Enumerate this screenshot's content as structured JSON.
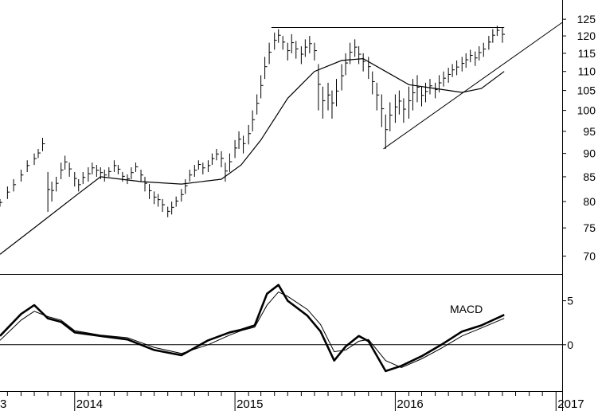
{
  "chart_data": [
    {
      "type": "ohlc-bar",
      "title": "",
      "ylabel": "",
      "scale": "log",
      "ylim": [
        67,
        127
      ],
      "y_ticks": [
        "70",
        "75",
        "80",
        "85",
        "90",
        "95",
        "100",
        "105",
        "110",
        "115",
        "120",
        "125"
      ],
      "x_ticks": [
        "3",
        "2014",
        "2015",
        "2016",
        "2017"
      ],
      "x_range": [
        "2013-07-15",
        "2017-01-15"
      ],
      "bars": [
        [
          "2013-07-15",
          79.0,
          80.5
        ],
        [
          "2013-08-01",
          80.5,
          83.0
        ],
        [
          "2013-08-15",
          82.0,
          84.5
        ],
        [
          "2013-09-01",
          84.0,
          86.5
        ],
        [
          "2013-09-15",
          86.0,
          88.5
        ],
        [
          "2013-10-01",
          87.5,
          90.0
        ],
        [
          "2013-10-10",
          89.0,
          91.0
        ],
        [
          "2013-10-20",
          90.5,
          93.5
        ],
        [
          "2013-11-01",
          78.0,
          86.0
        ],
        [
          "2013-11-10",
          80.0,
          84.0
        ],
        [
          "2013-11-20",
          82.0,
          85.0
        ],
        [
          "2013-12-01",
          84.5,
          88.0
        ],
        [
          "2013-12-10",
          86.5,
          89.5
        ],
        [
          "2013-12-20",
          85.0,
          88.0
        ],
        [
          "2014-01-01",
          83.0,
          86.0
        ],
        [
          "2014-01-10",
          82.0,
          84.5
        ],
        [
          "2014-01-20",
          83.5,
          86.0
        ],
        [
          "2014-02-01",
          84.0,
          87.0
        ],
        [
          "2014-02-10",
          85.5,
          88.0
        ],
        [
          "2014-02-20",
          85.0,
          87.5
        ],
        [
          "2014-03-01",
          84.5,
          87.0
        ],
        [
          "2014-03-10",
          84.0,
          86.5
        ],
        [
          "2014-03-20",
          85.0,
          87.0
        ],
        [
          "2014-04-01",
          86.0,
          88.5
        ],
        [
          "2014-04-10",
          85.5,
          87.5
        ],
        [
          "2014-04-20",
          84.0,
          86.0
        ],
        [
          "2014-05-01",
          83.5,
          85.5
        ],
        [
          "2014-05-10",
          84.5,
          87.0
        ],
        [
          "2014-05-20",
          86.0,
          88.0
        ],
        [
          "2014-06-01",
          84.0,
          86.5
        ],
        [
          "2014-06-10",
          82.0,
          85.0
        ],
        [
          "2014-06-20",
          80.5,
          83.5
        ],
        [
          "2014-07-01",
          79.5,
          82.0
        ],
        [
          "2014-07-10",
          79.0,
          81.5
        ],
        [
          "2014-07-20",
          78.0,
          80.5
        ],
        [
          "2014-08-01",
          77.0,
          79.0
        ],
        [
          "2014-08-10",
          77.5,
          80.0
        ],
        [
          "2014-08-20",
          79.0,
          81.0
        ],
        [
          "2014-09-01",
          80.0,
          82.5
        ],
        [
          "2014-09-10",
          81.5,
          84.5
        ],
        [
          "2014-09-20",
          84.0,
          86.5
        ],
        [
          "2014-10-01",
          85.0,
          87.5
        ],
        [
          "2014-10-10",
          86.5,
          88.5
        ],
        [
          "2014-10-20",
          85.5,
          88.0
        ],
        [
          "2014-11-01",
          86.0,
          88.5
        ],
        [
          "2014-11-10",
          87.5,
          90.0
        ],
        [
          "2014-11-20",
          88.5,
          91.0
        ],
        [
          "2014-12-01",
          87.0,
          90.5
        ],
        [
          "2014-12-10",
          84.0,
          88.0
        ],
        [
          "2014-12-20",
          86.0,
          90.0
        ],
        [
          "2015-01-01",
          89.0,
          93.0
        ],
        [
          "2015-01-10",
          91.0,
          95.0
        ],
        [
          "2015-01-20",
          90.0,
          94.0
        ],
        [
          "2015-02-01",
          92.0,
          96.5
        ],
        [
          "2015-02-10",
          95.0,
          100.0
        ],
        [
          "2015-02-20",
          99.0,
          104.0
        ],
        [
          "2015-03-01",
          103.0,
          109.0
        ],
        [
          "2015-03-10",
          108.0,
          114.0
        ],
        [
          "2015-03-20",
          112.0,
          118.0
        ],
        [
          "2015-04-01",
          116.0,
          121.0
        ],
        [
          "2015-04-10",
          118.0,
          122.0
        ],
        [
          "2015-04-20",
          116.0,
          120.0
        ],
        [
          "2015-05-01",
          113.0,
          118.0
        ],
        [
          "2015-05-10",
          115.0,
          120.5
        ],
        [
          "2015-05-20",
          113.5,
          118.5
        ],
        [
          "2015-06-01",
          112.0,
          117.0
        ],
        [
          "2015-06-10",
          114.0,
          119.0
        ],
        [
          "2015-06-20",
          115.0,
          120.0
        ],
        [
          "2015-07-01",
          113.0,
          118.0
        ],
        [
          "2015-07-10",
          100.0,
          112.0
        ],
        [
          "2015-07-20",
          98.0,
          106.0
        ],
        [
          "2015-08-01",
          100.0,
          107.0
        ],
        [
          "2015-08-10",
          98.0,
          105.0
        ],
        [
          "2015-08-20",
          101.0,
          108.0
        ],
        [
          "2015-09-01",
          105.0,
          112.0
        ],
        [
          "2015-09-10",
          109.0,
          115.0
        ],
        [
          "2015-09-20",
          112.0,
          118.0
        ],
        [
          "2015-10-01",
          114.0,
          119.0
        ],
        [
          "2015-10-10",
          112.0,
          117.0
        ],
        [
          "2015-10-20",
          110.0,
          115.0
        ],
        [
          "2015-11-01",
          108.0,
          114.0
        ],
        [
          "2015-11-10",
          104.0,
          110.0
        ],
        [
          "2015-11-20",
          100.0,
          107.0
        ],
        [
          "2015-12-01",
          96.0,
          104.0
        ],
        [
          "2015-12-10",
          91.0,
          99.0
        ],
        [
          "2015-12-20",
          95.0,
          102.0
        ],
        [
          "2016-01-01",
          97.0,
          104.0
        ],
        [
          "2016-01-10",
          99.0,
          105.0
        ],
        [
          "2016-01-20",
          97.0,
          103.0
        ],
        [
          "2016-02-01",
          98.0,
          106.0
        ],
        [
          "2016-02-10",
          100.0,
          108.0
        ],
        [
          "2016-02-20",
          102.0,
          109.0
        ],
        [
          "2016-03-01",
          101.0,
          106.0
        ],
        [
          "2016-03-10",
          102.0,
          107.0
        ],
        [
          "2016-03-20",
          104.0,
          108.0
        ],
        [
          "2016-04-01",
          103.0,
          107.0
        ],
        [
          "2016-04-10",
          104.5,
          109.0
        ],
        [
          "2016-04-20",
          106.0,
          110.0
        ],
        [
          "2016-05-01",
          107.0,
          111.0
        ],
        [
          "2016-05-10",
          108.5,
          112.0
        ],
        [
          "2016-05-20",
          109.0,
          113.0
        ],
        [
          "2016-06-01",
          110.0,
          114.0
        ],
        [
          "2016-06-10",
          111.0,
          115.0
        ],
        [
          "2016-06-20",
          112.5,
          116.0
        ],
        [
          "2016-07-01",
          111.5,
          115.5
        ],
        [
          "2016-07-10",
          113.0,
          117.0
        ],
        [
          "2016-07-20",
          114.0,
          118.0
        ],
        [
          "2016-08-01",
          116.0,
          120.0
        ],
        [
          "2016-08-10",
          118.0,
          122.0
        ],
        [
          "2016-08-20",
          120.0,
          123.0
        ],
        [
          "2016-09-01",
          118.0,
          122.5
        ]
      ],
      "resistance_line": {
        "from": [
          "2015-03-25",
          122.5
        ],
        "to": [
          "2016-09-05",
          122.5
        ]
      },
      "support_line": {
        "from": [
          "2015-12-05",
          91.0
        ],
        "to": [
          "2017-01-15",
          124.0
        ]
      },
      "moving_average": [
        [
          "2013-07-15",
          70.3
        ],
        [
          "2013-10-01",
          75.0
        ],
        [
          "2014-01-01",
          81.0
        ],
        [
          "2014-03-01",
          85.0
        ],
        [
          "2014-06-01",
          84.0
        ],
        [
          "2014-09-01",
          83.5
        ],
        [
          "2014-12-01",
          84.5
        ],
        [
          "2015-01-15",
          87.5
        ],
        [
          "2015-03-01",
          93.0
        ],
        [
          "2015-05-01",
          103.0
        ],
        [
          "2015-07-01",
          110.0
        ],
        [
          "2015-09-01",
          113.0
        ],
        [
          "2015-10-20",
          113.5
        ],
        [
          "2015-12-10",
          110.0
        ],
        [
          "2016-02-01",
          106.5
        ],
        [
          "2016-04-01",
          105.5
        ],
        [
          "2016-06-01",
          104.5
        ],
        [
          "2016-07-15",
          105.5
        ],
        [
          "2016-09-05",
          110.0
        ]
      ]
    },
    {
      "type": "line",
      "title": "MACD",
      "ylabel": "",
      "ylim": [
        -5,
        7.5
      ],
      "y_ticks": [
        "0",
        "5"
      ],
      "series": [
        {
          "values": [
            [
              "2013-07-15",
              1.0
            ],
            [
              "2013-09-01",
              3.5
            ],
            [
              "2013-10-01",
              4.5
            ],
            [
              "2013-11-01",
              3.0
            ],
            [
              "2013-12-01",
              2.6
            ],
            [
              "2014-01-01",
              1.4
            ],
            [
              "2014-03-01",
              1.0
            ],
            [
              "2014-05-01",
              0.6
            ],
            [
              "2014-07-01",
              -0.6
            ],
            [
              "2014-09-01",
              -1.2
            ],
            [
              "2014-11-01",
              0.5
            ],
            [
              "2014-12-20",
              1.4
            ],
            [
              "2015-01-15",
              1.7
            ],
            [
              "2015-02-15",
              2.2
            ],
            [
              "2015-03-15",
              5.8
            ],
            [
              "2015-04-10",
              6.8
            ],
            [
              "2015-05-01",
              5.0
            ],
            [
              "2015-06-15",
              3.3
            ],
            [
              "2015-07-15",
              1.5
            ],
            [
              "2015-08-15",
              -1.8
            ],
            [
              "2015-09-10",
              -0.2
            ],
            [
              "2015-10-10",
              1.0
            ],
            [
              "2015-11-01",
              0.4
            ],
            [
              "2015-12-10",
              -3.0
            ],
            [
              "2016-01-15",
              -2.4
            ],
            [
              "2016-03-01",
              -1.3
            ],
            [
              "2016-04-15",
              0.0
            ],
            [
              "2016-06-01",
              1.5
            ],
            [
              "2016-07-15",
              2.2
            ],
            [
              "2016-09-05",
              3.4
            ]
          ]
        },
        {
          "values": [
            [
              "2013-07-15",
              0.5
            ],
            [
              "2013-09-01",
              2.8
            ],
            [
              "2013-10-01",
              3.8
            ],
            [
              "2013-11-01",
              3.2
            ],
            [
              "2013-12-01",
              2.8
            ],
            [
              "2014-01-01",
              1.6
            ],
            [
              "2014-03-01",
              1.1
            ],
            [
              "2014-05-01",
              0.8
            ],
            [
              "2014-07-01",
              -0.3
            ],
            [
              "2014-09-01",
              -1.0
            ],
            [
              "2014-11-01",
              0.0
            ],
            [
              "2014-12-20",
              1.1
            ],
            [
              "2015-01-15",
              1.6
            ],
            [
              "2015-02-15",
              2.0
            ],
            [
              "2015-03-15",
              4.5
            ],
            [
              "2015-04-10",
              6.0
            ],
            [
              "2015-05-01",
              5.5
            ],
            [
              "2015-06-15",
              4.0
            ],
            [
              "2015-07-15",
              2.3
            ],
            [
              "2015-08-15",
              -0.8
            ],
            [
              "2015-09-10",
              -0.6
            ],
            [
              "2015-10-10",
              0.4
            ],
            [
              "2015-11-01",
              0.6
            ],
            [
              "2015-12-10",
              -1.8
            ],
            [
              "2016-01-15",
              -2.6
            ],
            [
              "2016-03-01",
              -1.6
            ],
            [
              "2016-04-15",
              -0.4
            ],
            [
              "2016-06-01",
              1.0
            ],
            [
              "2016-07-15",
              1.9
            ],
            [
              "2016-09-05",
              3.0
            ]
          ]
        }
      ]
    }
  ]
}
